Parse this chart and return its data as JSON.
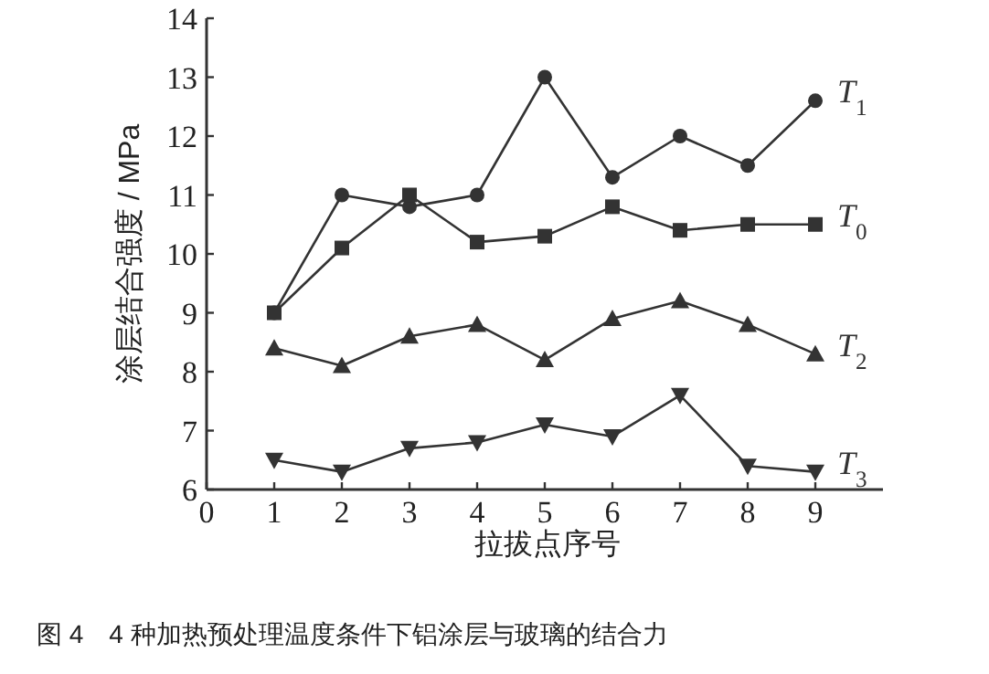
{
  "chart_data": {
    "type": "line",
    "xlabel": "拉拔点序号",
    "ylabel": "涂层结合强度 / MPa",
    "x": [
      1,
      2,
      3,
      4,
      5,
      6,
      7,
      8,
      9
    ],
    "series": [
      {
        "name": "T$_{1}$",
        "color": "#333333",
        "marker": "circle",
        "values": [
          9.0,
          11.0,
          10.8,
          11.0,
          13.0,
          11.3,
          12.0,
          11.5,
          12.6
        ]
      },
      {
        "name": "T$_{0}$",
        "color": "#333333",
        "marker": "square",
        "values": [
          9.0,
          10.1,
          11.0,
          10.2,
          10.3,
          10.8,
          10.4,
          10.5,
          10.5
        ]
      },
      {
        "name": "T$_{2}$",
        "color": "#333333",
        "marker": "triangle",
        "values": [
          8.4,
          8.1,
          8.6,
          8.8,
          8.2,
          8.9,
          9.2,
          8.8,
          8.3
        ]
      },
      {
        "name": "T$_{3}$",
        "color": "#333333",
        "marker": "triangle-down",
        "values": [
          6.5,
          6.3,
          6.7,
          6.8,
          7.1,
          6.9,
          7.6,
          6.4,
          6.3
        ]
      }
    ],
    "xlim": [
      0,
      10
    ],
    "ylim": [
      6,
      14
    ],
    "xticks": [
      0,
      1,
      2,
      3,
      4,
      5,
      6,
      7,
      8,
      9
    ],
    "yticks": [
      6,
      7,
      8,
      9,
      10,
      11,
      12,
      13,
      14
    ],
    "grid": false,
    "line_style": "solid",
    "annotations": [
      "图 4　4 种加热预处理温度条件下铝涂层与玻璃的结合力"
    ]
  }
}
